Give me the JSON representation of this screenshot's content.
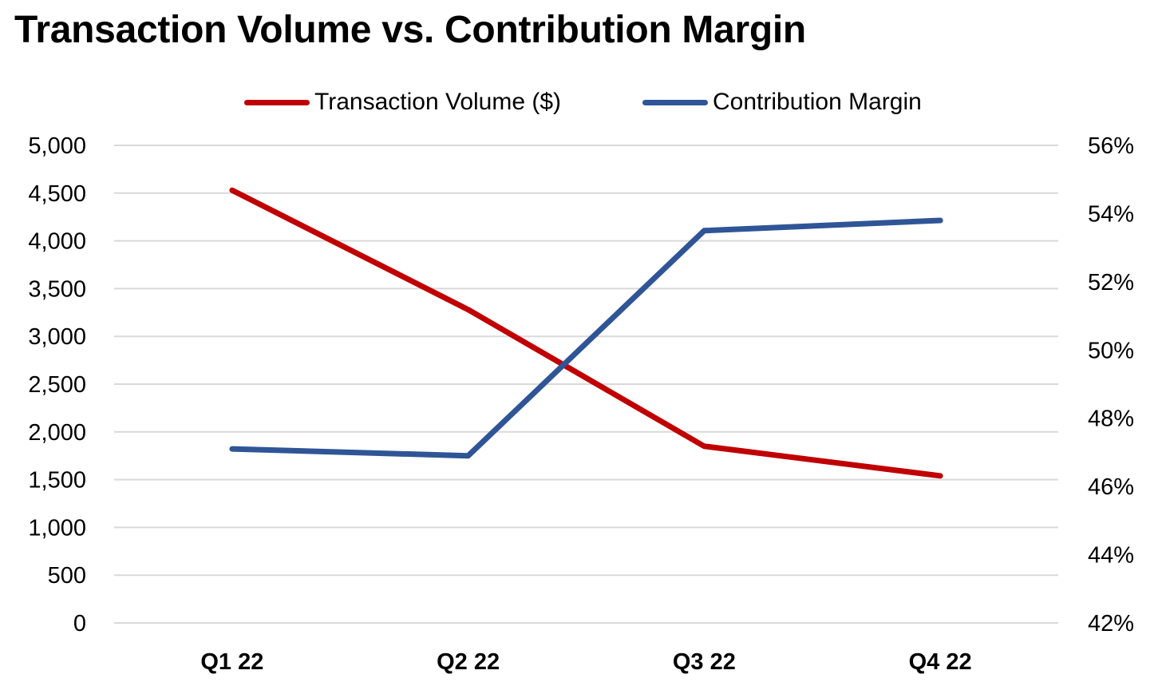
{
  "chart_data": {
    "type": "line",
    "title": "Transaction Volume vs. Contribution Margin",
    "categories": [
      "Q1 22",
      "Q2 22",
      "Q3 22",
      "Q4 22"
    ],
    "y_left": {
      "ylim": [
        0,
        5000
      ],
      "ticks": [
        0,
        500,
        1000,
        1500,
        2000,
        2500,
        3000,
        3500,
        4000,
        4500,
        5000
      ],
      "tick_labels": [
        "0",
        "500",
        "1,000",
        "1,500",
        "2,000",
        "2,500",
        "3,000",
        "3,500",
        "4,000",
        "4,500",
        "5,000"
      ]
    },
    "y_right": {
      "ylim": [
        0.42,
        0.56
      ],
      "ticks": [
        0.42,
        0.44,
        0.46,
        0.48,
        0.5,
        0.52,
        0.54,
        0.56
      ],
      "tick_labels": [
        "42%",
        "44%",
        "46%",
        "48%",
        "50%",
        "52%",
        "54%",
        "56%"
      ]
    },
    "series": [
      {
        "name": "Transaction Volume ($)",
        "axis": "left",
        "color": "#c00000",
        "values": [
          4530,
          3280,
          1850,
          1540
        ]
      },
      {
        "name": "Contribution Margin",
        "axis": "right",
        "color": "#2f5597",
        "values": [
          0.471,
          0.469,
          0.535,
          0.538
        ]
      }
    ],
    "grid": true,
    "legend_position": "top"
  }
}
